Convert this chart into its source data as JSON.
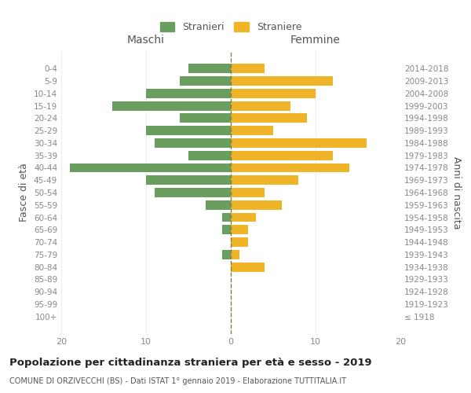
{
  "age_groups": [
    "100+",
    "95-99",
    "90-94",
    "85-89",
    "80-84",
    "75-79",
    "70-74",
    "65-69",
    "60-64",
    "55-59",
    "50-54",
    "45-49",
    "40-44",
    "35-39",
    "30-34",
    "25-29",
    "20-24",
    "15-19",
    "10-14",
    "5-9",
    "0-4"
  ],
  "birth_years": [
    "≤ 1918",
    "1919-1923",
    "1924-1928",
    "1929-1933",
    "1934-1938",
    "1939-1943",
    "1944-1948",
    "1949-1953",
    "1954-1958",
    "1959-1963",
    "1964-1968",
    "1969-1973",
    "1974-1978",
    "1979-1983",
    "1984-1988",
    "1989-1993",
    "1994-1998",
    "1999-2003",
    "2004-2008",
    "2009-2013",
    "2014-2018"
  ],
  "maschi": [
    0,
    0,
    0,
    0,
    0,
    1,
    0,
    1,
    1,
    3,
    9,
    10,
    19,
    5,
    9,
    10,
    6,
    14,
    10,
    6,
    5
  ],
  "femmine": [
    0,
    0,
    0,
    0,
    4,
    1,
    2,
    2,
    3,
    6,
    4,
    8,
    14,
    12,
    16,
    5,
    9,
    7,
    10,
    12,
    4
  ],
  "color_maschi": "#6a9e5e",
  "color_femmine": "#f0b429",
  "title": "Popolazione per cittadinanza straniera per età e sesso - 2019",
  "subtitle": "COMUNE DI ORZIVECCHI (BS) - Dati ISTAT 1° gennaio 2019 - Elaborazione TUTTITALIA.IT",
  "xlabel_maschi": "Maschi",
  "xlabel_femmine": "Femmine",
  "ylabel_left": "Fasce di età",
  "ylabel_right": "Anni di nascita",
  "legend_maschi": "Stranieri",
  "legend_femmine": "Straniere",
  "xlim": 20,
  "background_color": "#ffffff",
  "grid_color": "#dddddd",
  "dashed_line_color": "#808040"
}
